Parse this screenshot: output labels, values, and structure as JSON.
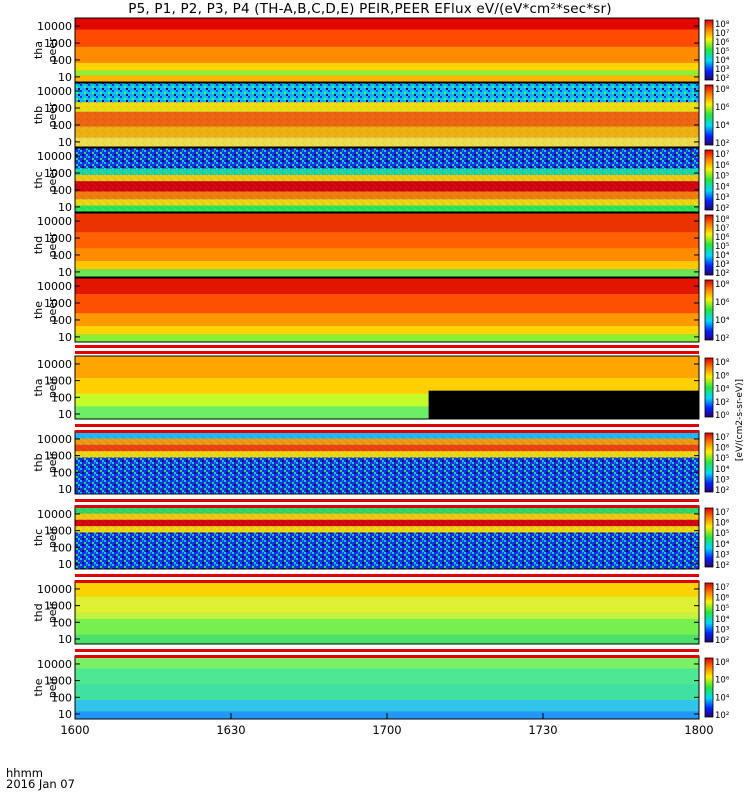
{
  "figure": {
    "title": "P5, P1, P2, P3, P4 (TH-A,B,C,D,E) PEIR,PEER EFlux eV/(eV*cm²*sec*sr)",
    "colorbar_units": "[eV/(cm2-s-sr-eV)]",
    "time_label": "hhmm",
    "date_label": "2016 Jan 07"
  },
  "chart_data": {
    "type": "heatmap",
    "title": "P5, P1, P2, P3, P4 (TH-A,B,C,D,E) PEIR,PEER EFlux eV/(eV*cm²*sec*sr)",
    "xlabel": "hhmm",
    "x_ticks": [
      "1600",
      "1630",
      "1700",
      "1730",
      "1800"
    ],
    "x_range_minutes": [
      0,
      120
    ],
    "y_ticks": [
      "10000",
      "1000",
      "100",
      "10"
    ],
    "y_scale": "log",
    "y_range_eV": [
      5,
      30000
    ],
    "panels": [
      {
        "name": "tha peer",
        "label1": "tha",
        "label2": "peer",
        "cb_ticks": [
          "10⁸",
          "10⁷",
          "10⁶",
          "10⁵",
          "10⁴",
          "10³",
          "10²"
        ]
      },
      {
        "name": "thb peer",
        "label1": "thb",
        "label2": "peer",
        "cb_ticks": [
          "10⁸",
          "10⁶",
          "10⁴",
          "10²"
        ]
      },
      {
        "name": "thc peer",
        "label1": "thc",
        "label2": "peer",
        "cb_ticks": [
          "10⁷",
          "10⁶",
          "10⁵",
          "10⁴",
          "10³",
          "10²"
        ]
      },
      {
        "name": "thd peer",
        "label1": "thd",
        "label2": "peer",
        "cb_ticks": [
          "10⁸",
          "10⁷",
          "10⁶",
          "10⁵",
          "10⁴",
          "10³",
          "10²"
        ]
      },
      {
        "name": "the peer",
        "label1": "the",
        "label2": "peer",
        "cb_ticks": [
          "10⁸",
          "10⁶",
          "10⁴",
          "10²"
        ]
      },
      {
        "name": "tha peir",
        "label1": "tha",
        "label2": "peir",
        "cb_ticks": [
          "10⁸",
          "10⁶",
          "10⁴",
          "10²",
          "10⁰"
        ]
      },
      {
        "name": "thb peir",
        "label1": "thb",
        "label2": "peir",
        "cb_ticks": [
          "10⁷",
          "10⁶",
          "10⁵",
          "10⁴",
          "10³",
          "10²"
        ]
      },
      {
        "name": "thc peir",
        "label1": "thc",
        "label2": "peir",
        "cb_ticks": [
          "10⁷",
          "10⁶",
          "10⁵",
          "10⁴",
          "10³",
          "10²"
        ]
      },
      {
        "name": "thd peir",
        "label1": "thd",
        "label2": "peir",
        "cb_ticks": [
          "10⁷",
          "10⁶",
          "10⁵",
          "10⁴",
          "10³",
          "10²"
        ]
      },
      {
        "name": "the peir",
        "label1": "the",
        "label2": "peir",
        "cb_ticks": [
          "10⁸",
          "10⁶",
          "10⁴",
          "10²"
        ]
      }
    ]
  }
}
